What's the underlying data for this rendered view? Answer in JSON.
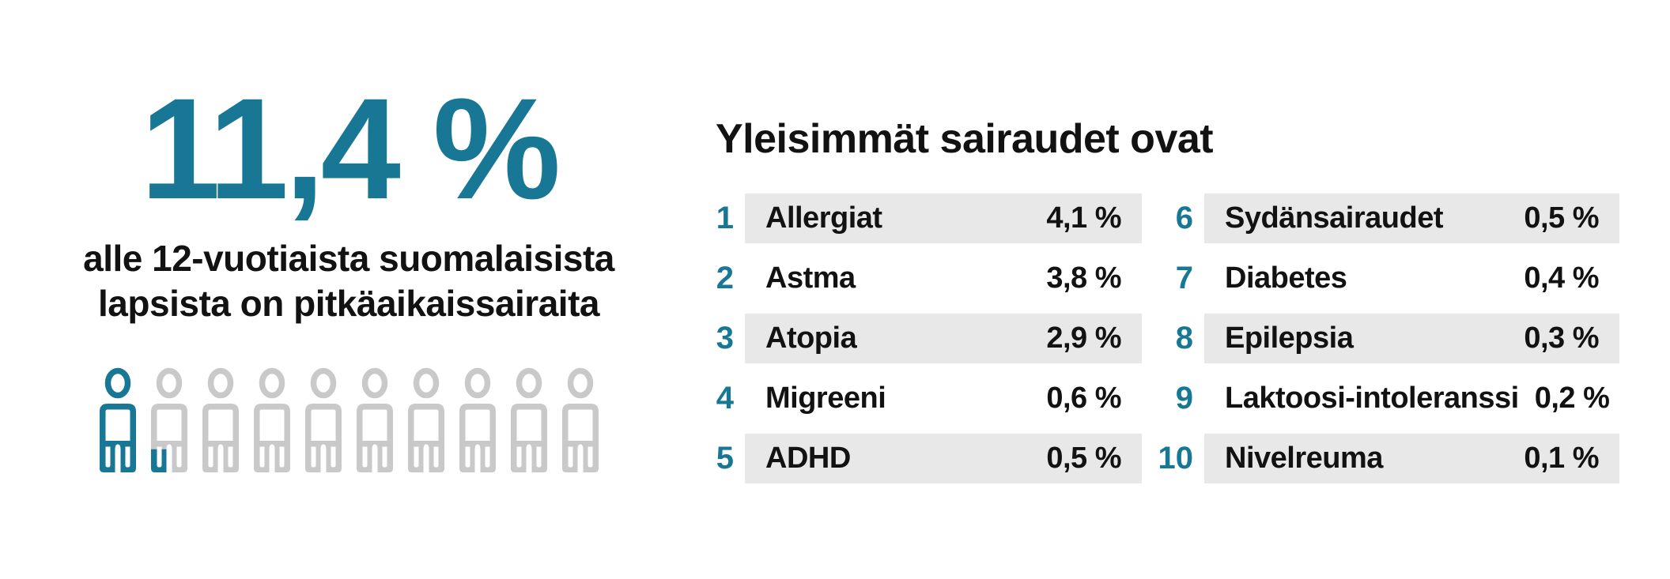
{
  "colors": {
    "teal": "#187795",
    "icon_gray": "#c9c9c9",
    "row_stripe": "#e8e8e8",
    "text": "#121212"
  },
  "stat": {
    "value": "11,4 %",
    "description_line1": "alle 12-vuotiaista suomalaisista",
    "description_line2": "lapsista on pitkäaikaissairaita",
    "pictogram": {
      "total": 10,
      "full_count": 1,
      "partial_count": 1
    }
  },
  "diseases": {
    "heading": "Yleisimmät sairaudet ovat",
    "left_column": [
      {
        "rank": "1",
        "name": "Allergiat",
        "value": "4,1 %"
      },
      {
        "rank": "2",
        "name": "Astma",
        "value": "3,8 %"
      },
      {
        "rank": "3",
        "name": "Atopia",
        "value": "2,9 %"
      },
      {
        "rank": "4",
        "name": "Migreeni",
        "value": "0,6 %"
      },
      {
        "rank": "5",
        "name": "ADHD",
        "value": "0,5 %"
      }
    ],
    "right_column": [
      {
        "rank": "6",
        "name": "Sydänsairaudet",
        "value": "0,5 %"
      },
      {
        "rank": "7",
        "name": "Diabetes",
        "value": "0,4 %"
      },
      {
        "rank": "8",
        "name": "Epilepsia",
        "value": "0,3 %"
      },
      {
        "rank": "9",
        "name": "Laktoosi-intoleranssi",
        "value": "0,2 %"
      },
      {
        "rank": "10",
        "name": "Nivelreuma",
        "value": "0,1 %"
      }
    ]
  },
  "chart_data": [
    {
      "type": "pictogram",
      "title": "11,4 % alle 12-vuotiaista suomalaisista lapsista on pitkäaikaissairaita",
      "value_percent": 11.4,
      "icons_total": 10,
      "icons_highlighted": 1.14
    },
    {
      "type": "table",
      "title": "Yleisimmät sairaudet ovat",
      "categories": [
        "Allergiat",
        "Astma",
        "Atopia",
        "Migreeni",
        "ADHD",
        "Sydänsairaudet",
        "Diabetes",
        "Epilepsia",
        "Laktoosi-intoleranssi",
        "Nivelreuma"
      ],
      "values": [
        4.1,
        3.8,
        2.9,
        0.6,
        0.5,
        0.5,
        0.4,
        0.3,
        0.2,
        0.1
      ],
      "value_unit": "%"
    }
  ]
}
